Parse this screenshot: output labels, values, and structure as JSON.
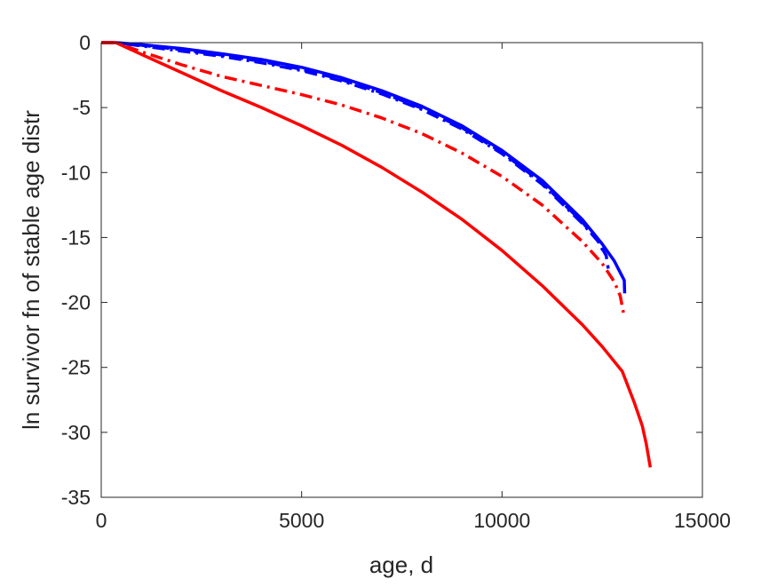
{
  "chart_data": {
    "type": "line",
    "title": "",
    "xlabel": "age, d",
    "ylabel": "ln survivor fn of stable age distr",
    "xlim": [
      0,
      15000
    ],
    "ylim": [
      -35,
      0
    ],
    "xticks": [
      0,
      5000,
      10000,
      15000
    ],
    "yticks": [
      0,
      -5,
      -10,
      -15,
      -20,
      -25,
      -30,
      -35
    ],
    "xtick_labels": [
      "0",
      "5000",
      "10000",
      "15000"
    ],
    "ytick_labels": [
      "0",
      "-5",
      "-10",
      "-15",
      "-20",
      "-25",
      "-30",
      "-35"
    ],
    "grid": false,
    "legend": null,
    "series": [
      {
        "color": "#0000ff",
        "style": "solid",
        "x": [
          0,
          365,
          1000,
          2000,
          3000,
          4000,
          5000,
          6000,
          7000,
          8000,
          9000,
          10000,
          11000,
          12000,
          12500,
          12800,
          12950,
          13050,
          13060
        ],
        "y": [
          0,
          0,
          -0.15,
          -0.45,
          -0.85,
          -1.3,
          -1.9,
          -2.7,
          -3.7,
          -4.9,
          -6.4,
          -8.3,
          -10.6,
          -13.6,
          -15.5,
          -16.8,
          -17.7,
          -18.3,
          -19.3
        ]
      },
      {
        "color": "#0000ff",
        "style": "dashed",
        "x": [
          0,
          365,
          1000,
          2000,
          3000,
          4000,
          5000,
          6000,
          7000,
          8000,
          9000,
          10000,
          11000,
          12000,
          12400,
          12600,
          12650
        ],
        "y": [
          0,
          0,
          -0.2,
          -0.55,
          -0.95,
          -1.45,
          -2.05,
          -2.85,
          -3.85,
          -5.05,
          -6.55,
          -8.45,
          -10.8,
          -13.8,
          -15.3,
          -16.4,
          -17.4
        ]
      },
      {
        "color": "#0000ff",
        "style": "dashdot",
        "x": [
          0,
          365,
          1000,
          2000,
          3000,
          4000,
          5000,
          6000,
          7000,
          8000,
          9000,
          10000,
          11000,
          12000,
          12400,
          12550
        ],
        "y": [
          0,
          0,
          -0.25,
          -0.65,
          -1.05,
          -1.55,
          -2.15,
          -2.95,
          -3.95,
          -5.15,
          -6.65,
          -8.55,
          -10.9,
          -13.9,
          -15.3,
          -16.2
        ]
      },
      {
        "color": "#ff0000",
        "style": "dashdot",
        "x": [
          0,
          365,
          1000,
          2000,
          3000,
          4000,
          5000,
          6000,
          7000,
          8000,
          9000,
          10000,
          11000,
          12000,
          12500,
          12800,
          12950,
          13030
        ],
        "y": [
          0,
          0,
          -0.7,
          -1.7,
          -2.6,
          -3.3,
          -4.0,
          -4.8,
          -5.8,
          -7.0,
          -8.5,
          -10.3,
          -12.5,
          -15.3,
          -17.0,
          -18.4,
          -19.5,
          -20.8
        ]
      },
      {
        "color": "#ff0000",
        "style": "solid",
        "x": [
          0,
          365,
          1000,
          2000,
          3000,
          4000,
          5000,
          6000,
          7000,
          8000,
          9000,
          10000,
          11000,
          12000,
          12500,
          13000,
          13300,
          13500,
          13600,
          13700
        ],
        "y": [
          0,
          0,
          -0.9,
          -2.3,
          -3.7,
          -5.0,
          -6.4,
          -7.9,
          -9.6,
          -11.5,
          -13.6,
          -16.0,
          -18.7,
          -21.7,
          -23.4,
          -25.3,
          -27.7,
          -29.5,
          -30.9,
          -32.7
        ]
      }
    ]
  }
}
